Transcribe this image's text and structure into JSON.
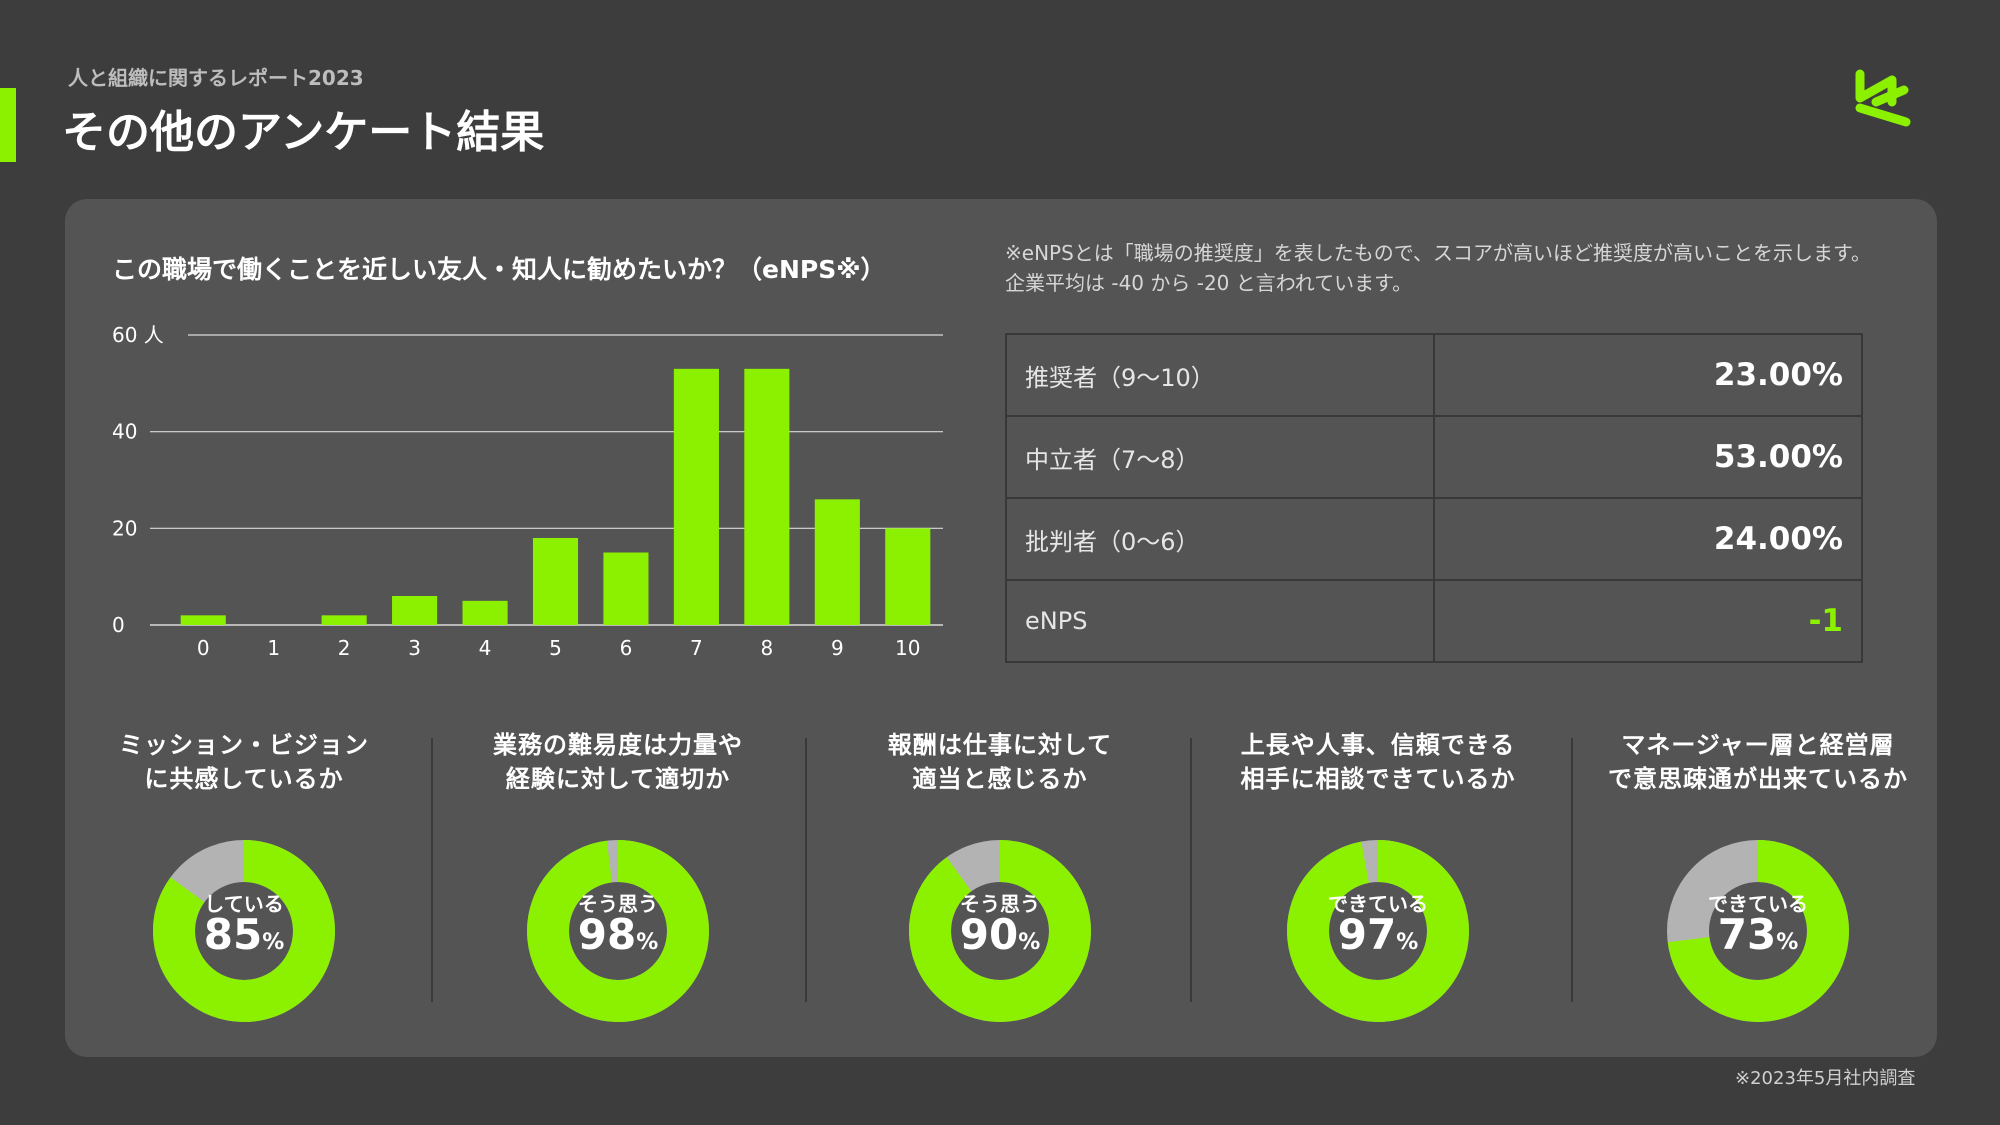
{
  "header": {
    "subtitle": "人と組織に関するレポート2023",
    "title": "その他のアンケート結果"
  },
  "logo": {
    "icon": "brand-logo-icon",
    "color": "#8cf100"
  },
  "colors": {
    "accent": "#8cf100",
    "remainder": "#b3b3b3",
    "background": "#3d3d3d",
    "panel": "#545454"
  },
  "enps_section": {
    "question": "この職場で働くことを近しい友人・知人に勧めたいか？（eNPS※）",
    "note": "※eNPSとは「職場の推奨度」を表したもので、スコアが高いほど推奨度が高いことを示します。企業平均は -40 から -20 と言われています。",
    "table": [
      {
        "label": "推奨者（9〜10）",
        "value": "23.00%"
      },
      {
        "label": "中立者（7〜8）",
        "value": "53.00%"
      },
      {
        "label": "批判者（0〜6）",
        "value": "24.00%"
      },
      {
        "label": "eNPS",
        "value": "-1"
      }
    ]
  },
  "chart_data": [
    {
      "type": "bar",
      "title": "この職場で働くことを近しい友人・知人に勧めたいか？（eNPS※）",
      "categories": [
        "0",
        "1",
        "2",
        "3",
        "4",
        "5",
        "6",
        "7",
        "8",
        "9",
        "10"
      ],
      "values": [
        2,
        0,
        2,
        6,
        5,
        18,
        15,
        53,
        53,
        26,
        20
      ],
      "ylim": [
        0,
        60
      ],
      "yticks": [
        0,
        20,
        40,
        60
      ],
      "ytick_labels": [
        "0",
        "20",
        "40",
        "60 人"
      ],
      "grid": true,
      "color": "#8cf100"
    },
    {
      "type": "pie",
      "question": "ミッション・ビジョン\nに共感しているか",
      "label": "している",
      "value": 85,
      "unit": "%"
    },
    {
      "type": "pie",
      "question": "業務の難易度は力量や\n経験に対して適切か",
      "label": "そう思う",
      "value": 98,
      "unit": "%"
    },
    {
      "type": "pie",
      "question": "報酬は仕事に対して\n適当と感じるか",
      "label": "そう思う",
      "value": 90,
      "unit": "%"
    },
    {
      "type": "pie",
      "question": "上長や人事、信頼できる\n相手に相談できているか",
      "label": "できている",
      "value": 97,
      "unit": "%"
    },
    {
      "type": "pie",
      "question": "マネージャー層と経営層\nで意思疎通が出来ているか",
      "label": "できている",
      "value": 73,
      "unit": "%"
    }
  ],
  "footnote": "※2023年5月社内調査"
}
